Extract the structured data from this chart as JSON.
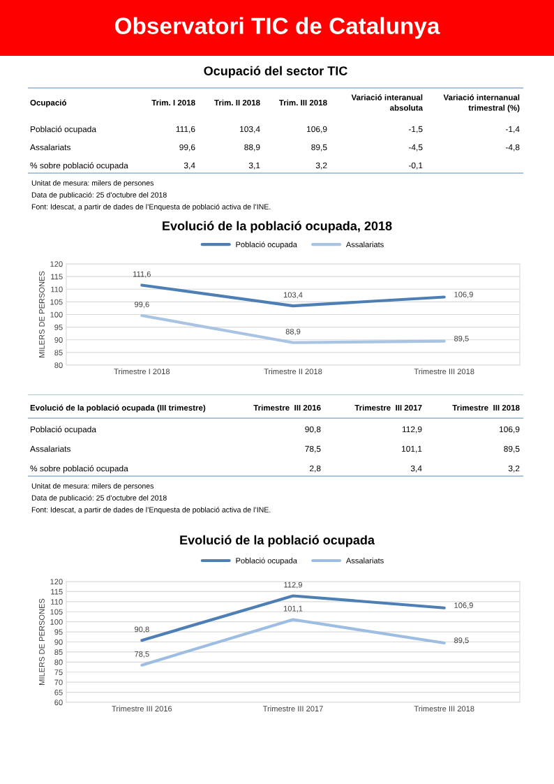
{
  "chart_data": [
    {
      "type": "other",
      "title": "Observatori TIC de Catalunya",
      "color": "#ff0000"
    },
    {
      "type": "other",
      "title": "Ocupació del sector TIC",
      "categories": [
        "Ocupació",
        "Trim. I 2018",
        "Trim. II 2018",
        "Trim. III 2018",
        "Variació interanual\nabsoluta",
        "Variació internanual\ntrimestral (%)"
      ],
      "cell_labels": [
        [
          "Població ocupada",
          "111,6",
          "103,4",
          "106,9",
          "-1,5",
          "-1,4"
        ],
        [
          "Assalariats",
          "99,6",
          "88,9",
          "89,5",
          "-4,5",
          "-4,8"
        ],
        [
          "% sobre població ocupada",
          "3,4",
          "3,1",
          "3,2",
          "-0,1",
          null
        ]
      ],
      "annotations": [
        "Unitat de mesura: milers de persones",
        "Data de publicació: 25 d’octubre del 2018",
        "Font: Idescat, a partir de dades de l’Enquesta de població activa de l’INE."
      ]
    },
    {
      "type": "line",
      "title": "Evolució de la població ocupada, 2018",
      "ylabel": "MILERS DE PERSONES",
      "categories": [
        "Trimestre I 2018",
        "Trimestre II 2018",
        "Trimestre III 2018"
      ],
      "series": [
        {
          "name": "Població ocupada",
          "color": "#4e7fb4",
          "values": [
            111.6,
            103.4,
            106.9
          ],
          "value_labels": [
            "111,6",
            "103,4",
            "106,9"
          ]
        },
        {
          "name": "Assalariats",
          "color": "#a8c4e2",
          "values": [
            99.6,
            88.9,
            89.5
          ],
          "value_labels": [
            "99,6",
            "88,9",
            "89,5"
          ]
        }
      ],
      "ylim": [
        80,
        120
      ],
      "yticks": [
        80,
        85,
        90,
        95,
        100,
        105,
        110,
        115,
        120
      ],
      "grid": "y",
      "legend": "top",
      "marker": "none",
      "line_style": "solid"
    },
    {
      "type": "other",
      "categories": [
        "Evolució de la població ocupada (III trimestre)",
        "Trimestre  III 2016",
        "Trimestre  III 2017",
        "Trimestre  III 2018"
      ],
      "cell_labels": [
        [
          "Població ocupada",
          "90,8",
          "112,9",
          "106,9"
        ],
        [
          "Assalariats",
          "78,5",
          "101,1",
          "89,5"
        ],
        [
          "% sobre població ocupada",
          "2,8",
          "3,4",
          "3,2"
        ]
      ],
      "annotations": [
        "Unitat de mesura: milers de persones",
        "Data de publicació: 25 d’octubre del 2018",
        "Font: Idescat, a partir de dades de l’Enquesta de població activa de l’INE."
      ]
    },
    {
      "type": "line",
      "title": "Evolució de la població ocupada",
      "ylabel": "MILERS DE PERSONES",
      "categories": [
        "Trimestre III 2016",
        "Trimestre III 2017",
        "Trimestre III 2018"
      ],
      "series": [
        {
          "name": "Població ocupada",
          "color": "#4e7fb4",
          "values": [
            90.8,
            112.9,
            106.9
          ],
          "value_labels": [
            "90,8",
            "112,9",
            "106,9"
          ]
        },
        {
          "name": "Assalariats",
          "color": "#9dbde2",
          "values": [
            78.5,
            101.1,
            89.5
          ],
          "value_labels": [
            "78,5",
            "101,1",
            "89,5"
          ]
        }
      ],
      "ylim": [
        60,
        120
      ],
      "yticks": [
        60,
        65,
        70,
        75,
        80,
        85,
        90,
        95,
        100,
        105,
        110,
        115,
        120
      ],
      "grid": "y",
      "legend": "top",
      "marker": "none",
      "line_style": "solid"
    }
  ]
}
